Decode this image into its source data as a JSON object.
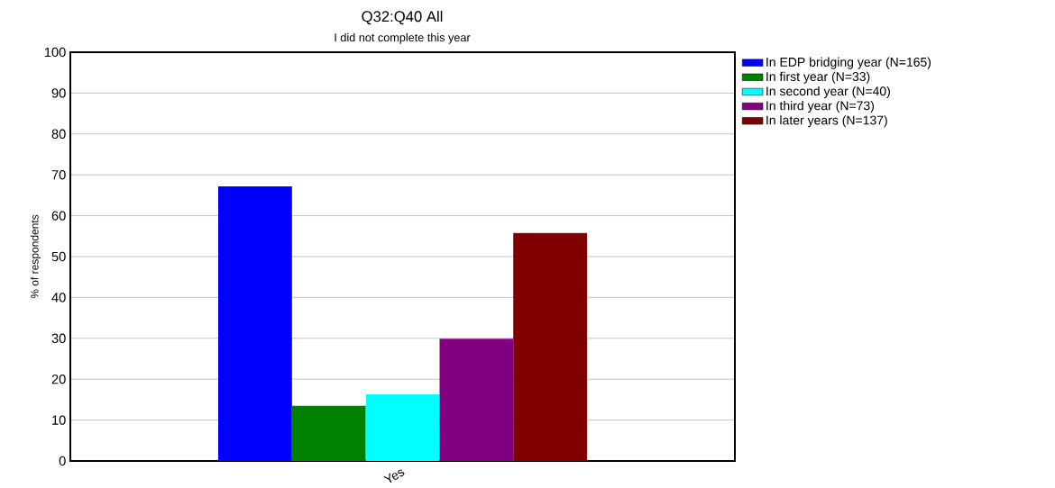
{
  "chart_data": {
    "type": "bar",
    "title": "Q32:Q40 All",
    "subtitle": "I did not complete this year",
    "ylabel": "% of respondents",
    "categories": [
      "Yes"
    ],
    "series": [
      {
        "name": "In EDP bridging year (N=165)",
        "color": "#0000ff",
        "values": [
          67.2
        ]
      },
      {
        "name": "In first year (N=33)",
        "color": "#008000",
        "values": [
          13.5
        ]
      },
      {
        "name": "In second year (N=40)",
        "color": "#00ffff",
        "values": [
          16.3
        ]
      },
      {
        "name": "In third year (N=73)",
        "color": "#800080",
        "values": [
          29.9
        ]
      },
      {
        "name": "In later years (N=137)",
        "color": "#800000",
        "values": [
          55.8
        ]
      }
    ],
    "ylim": [
      0,
      100
    ],
    "yticks": [
      0,
      10,
      20,
      30,
      40,
      50,
      60,
      70,
      80,
      90,
      100
    ],
    "grid": "y",
    "legend": "top right"
  }
}
